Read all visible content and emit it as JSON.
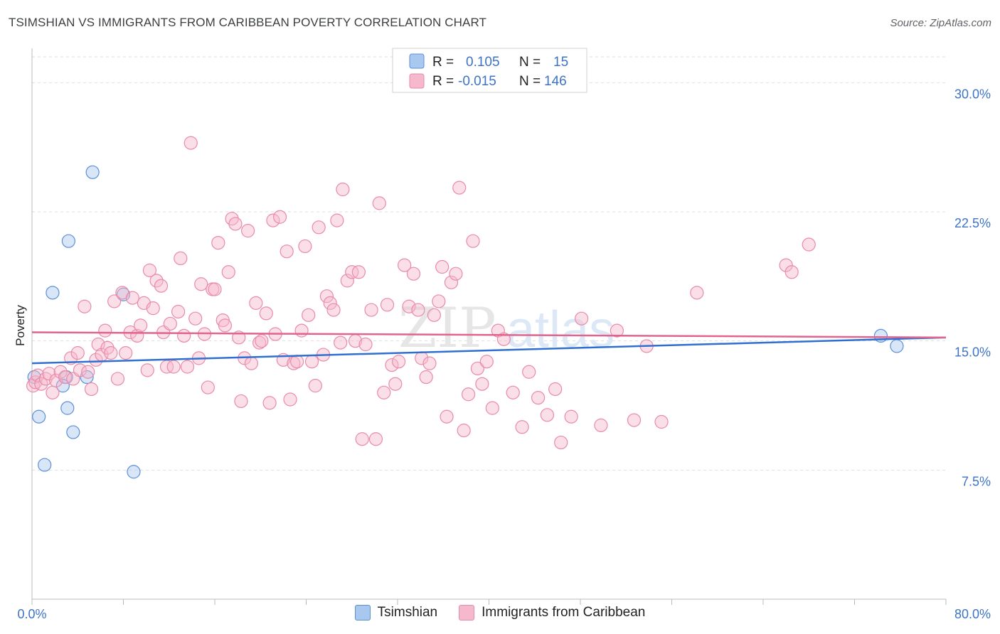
{
  "title": "TSIMSHIAN VS IMMIGRANTS FROM CARIBBEAN POVERTY CORRELATION CHART",
  "source": "Source: ZipAtlas.com",
  "watermark": {
    "zip": "ZIP",
    "atlas": "atlas"
  },
  "colors": {
    "blue_fill": "#a9c8f0",
    "blue_stroke": "#5b8fd6",
    "blue_line": "#2f6fd1",
    "pink_fill": "#f6b8cc",
    "pink_stroke": "#e98aa8",
    "pink_line": "#e0648f",
    "grid": "#dddddd",
    "label": "#3d74c6"
  },
  "legend": {
    "rows": [
      {
        "r_label": "R =",
        "r_value": "0.105",
        "n_label": "N =",
        "n_value": "15",
        "color": "blue"
      },
      {
        "r_label": "R =",
        "r_value": "-0.015",
        "n_label": "N =",
        "n_value": "146",
        "color": "pink"
      }
    ],
    "placement": "top-center"
  },
  "chart_data": {
    "type": "scatter",
    "title": "TSIMSHIAN VS IMMIGRANTS FROM CARIBBEAN POVERTY CORRELATION CHART",
    "xlabel": "",
    "ylabel": "Poverty",
    "xlim": [
      0,
      80
    ],
    "ylim": [
      0,
      31.5
    ],
    "x_tick_labels": [
      "0.0%",
      "80.0%"
    ],
    "y_ticks": [
      7.5,
      15.0,
      22.5,
      30.0
    ],
    "y_tick_labels": [
      "7.5%",
      "15.0%",
      "22.5%",
      "30.0%"
    ],
    "grid": true,
    "series": [
      {
        "name": "Tsimshian",
        "color": "blue",
        "trend": {
          "x": [
            0,
            80
          ],
          "y": [
            13.7,
            15.2
          ]
        },
        "points": [
          [
            5.3,
            24.8
          ],
          [
            3.2,
            20.8
          ],
          [
            1.8,
            17.8
          ],
          [
            8.0,
            17.7
          ],
          [
            0.2,
            12.9
          ],
          [
            3.0,
            12.9
          ],
          [
            4.8,
            12.9
          ],
          [
            2.7,
            12.4
          ],
          [
            0.6,
            10.6
          ],
          [
            3.1,
            11.1
          ],
          [
            3.6,
            9.7
          ],
          [
            1.1,
            7.8
          ],
          [
            8.9,
            7.4
          ],
          [
            74.3,
            15.3
          ],
          [
            75.7,
            14.7
          ]
        ]
      },
      {
        "name": "Immigrants from Caribbean",
        "color": "pink",
        "trend": {
          "x": [
            0,
            80
          ],
          "y": [
            15.5,
            15.2
          ]
        },
        "points": [
          [
            0.1,
            12.4
          ],
          [
            0.3,
            12.6
          ],
          [
            0.5,
            13.0
          ],
          [
            0.8,
            12.5
          ],
          [
            1.2,
            12.8
          ],
          [
            1.5,
            13.1
          ],
          [
            1.8,
            12.0
          ],
          [
            2.1,
            12.7
          ],
          [
            2.5,
            13.2
          ],
          [
            2.9,
            12.9
          ],
          [
            3.4,
            14.0
          ],
          [
            3.6,
            12.8
          ],
          [
            4.0,
            14.3
          ],
          [
            4.2,
            13.3
          ],
          [
            4.6,
            17.0
          ],
          [
            4.9,
            13.2
          ],
          [
            5.2,
            12.2
          ],
          [
            5.6,
            13.9
          ],
          [
            5.8,
            14.8
          ],
          [
            6.1,
            14.2
          ],
          [
            6.4,
            15.6
          ],
          [
            6.6,
            14.6
          ],
          [
            6.9,
            14.3
          ],
          [
            7.2,
            17.3
          ],
          [
            7.5,
            12.8
          ],
          [
            7.9,
            17.8
          ],
          [
            8.2,
            14.3
          ],
          [
            8.6,
            15.5
          ],
          [
            8.8,
            17.5
          ],
          [
            9.2,
            15.3
          ],
          [
            9.5,
            15.9
          ],
          [
            9.8,
            17.2
          ],
          [
            10.1,
            13.3
          ],
          [
            10.3,
            19.1
          ],
          [
            10.6,
            16.9
          ],
          [
            10.9,
            18.5
          ],
          [
            11.3,
            18.2
          ],
          [
            11.5,
            15.5
          ],
          [
            11.8,
            13.5
          ],
          [
            12.1,
            16.0
          ],
          [
            12.4,
            13.5
          ],
          [
            12.8,
            16.7
          ],
          [
            13.0,
            19.8
          ],
          [
            13.3,
            15.3
          ],
          [
            13.6,
            13.5
          ],
          [
            13.9,
            26.5
          ],
          [
            14.3,
            16.3
          ],
          [
            14.6,
            14.0
          ],
          [
            14.8,
            18.3
          ],
          [
            15.1,
            15.4
          ],
          [
            15.4,
            12.3
          ],
          [
            15.8,
            18.0
          ],
          [
            16.0,
            18.0
          ],
          [
            16.3,
            20.7
          ],
          [
            16.7,
            16.2
          ],
          [
            16.9,
            15.9
          ],
          [
            17.2,
            19.0
          ],
          [
            17.5,
            22.1
          ],
          [
            17.8,
            21.8
          ],
          [
            18.1,
            15.2
          ],
          [
            18.3,
            11.5
          ],
          [
            18.6,
            14.0
          ],
          [
            18.9,
            21.4
          ],
          [
            19.2,
            13.7
          ],
          [
            19.6,
            17.2
          ],
          [
            19.9,
            14.9
          ],
          [
            20.1,
            15.0
          ],
          [
            20.5,
            16.6
          ],
          [
            20.8,
            11.4
          ],
          [
            21.1,
            22.0
          ],
          [
            21.3,
            15.4
          ],
          [
            21.7,
            22.2
          ],
          [
            22.0,
            13.9
          ],
          [
            22.3,
            20.2
          ],
          [
            22.6,
            11.6
          ],
          [
            22.9,
            13.7
          ],
          [
            23.2,
            13.8
          ],
          [
            23.6,
            15.6
          ],
          [
            23.9,
            20.5
          ],
          [
            24.2,
            16.5
          ],
          [
            24.5,
            13.8
          ],
          [
            24.8,
            12.4
          ],
          [
            25.1,
            21.6
          ],
          [
            25.5,
            14.2
          ],
          [
            25.8,
            17.6
          ],
          [
            26.1,
            17.2
          ],
          [
            26.4,
            16.8
          ],
          [
            26.7,
            22.0
          ],
          [
            27.0,
            14.9
          ],
          [
            27.2,
            23.8
          ],
          [
            27.6,
            18.5
          ],
          [
            28.0,
            19.0
          ],
          [
            28.3,
            15.0
          ],
          [
            28.6,
            19.0
          ],
          [
            28.9,
            9.3
          ],
          [
            29.2,
            14.8
          ],
          [
            29.7,
            16.8
          ],
          [
            30.1,
            9.3
          ],
          [
            30.4,
            23.0
          ],
          [
            30.8,
            12.0
          ],
          [
            31.1,
            17.1
          ],
          [
            31.5,
            13.6
          ],
          [
            31.8,
            12.5
          ],
          [
            32.1,
            13.8
          ],
          [
            32.6,
            19.4
          ],
          [
            33.0,
            17.0
          ],
          [
            33.4,
            18.9
          ],
          [
            33.8,
            16.8
          ],
          [
            34.1,
            14.0
          ],
          [
            34.5,
            12.9
          ],
          [
            34.8,
            13.7
          ],
          [
            35.2,
            16.5
          ],
          [
            35.6,
            17.3
          ],
          [
            35.9,
            19.3
          ],
          [
            36.3,
            10.6
          ],
          [
            36.7,
            18.4
          ],
          [
            37.1,
            18.9
          ],
          [
            37.4,
            23.9
          ],
          [
            37.8,
            9.8
          ],
          [
            38.2,
            11.9
          ],
          [
            38.6,
            20.8
          ],
          [
            39.0,
            13.4
          ],
          [
            39.4,
            12.5
          ],
          [
            39.8,
            13.8
          ],
          [
            40.3,
            11.1
          ],
          [
            40.8,
            15.6
          ],
          [
            41.3,
            15.1
          ],
          [
            42.1,
            12.0
          ],
          [
            42.9,
            10.0
          ],
          [
            43.5,
            13.2
          ],
          [
            44.3,
            11.7
          ],
          [
            45.1,
            10.7
          ],
          [
            45.8,
            12.2
          ],
          [
            46.3,
            9.1
          ],
          [
            47.2,
            10.6
          ],
          [
            48.1,
            16.3
          ],
          [
            49.8,
            10.1
          ],
          [
            51.2,
            15.6
          ],
          [
            52.7,
            10.4
          ],
          [
            53.8,
            14.7
          ],
          [
            55.1,
            10.3
          ],
          [
            58.2,
            17.8
          ],
          [
            66.0,
            19.4
          ],
          [
            66.5,
            19.0
          ],
          [
            68.0,
            20.6
          ]
        ]
      }
    ]
  },
  "bottom_legend": [
    {
      "label": "Tsimshian",
      "color": "blue"
    },
    {
      "label": "Immigrants from Caribbean",
      "color": "pink"
    }
  ]
}
